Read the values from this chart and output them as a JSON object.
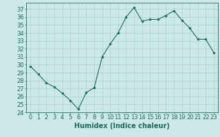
{
  "x": [
    0,
    1,
    2,
    3,
    4,
    5,
    6,
    7,
    8,
    9,
    10,
    11,
    12,
    13,
    14,
    15,
    16,
    17,
    18,
    19,
    20,
    21,
    22,
    23
  ],
  "y": [
    29.8,
    28.8,
    27.7,
    27.2,
    26.4,
    25.5,
    24.4,
    26.5,
    27.1,
    31.0,
    32.6,
    34.0,
    36.0,
    37.2,
    35.5,
    35.7,
    35.7,
    36.2,
    36.8,
    35.6,
    34.6,
    33.2,
    33.2,
    31.5
  ],
  "line_color": "#1a6b5a",
  "marker_color": "#1a6b5a",
  "bg_color": "#cce8e8",
  "grid_color": "#add0d0",
  "xlabel": "Humidex (Indice chaleur)",
  "xlim": [
    -0.5,
    23.5
  ],
  "ylim": [
    24,
    37.8
  ],
  "yticks": [
    24,
    25,
    26,
    27,
    28,
    29,
    30,
    31,
    32,
    33,
    34,
    35,
    36,
    37
  ],
  "xticks": [
    0,
    1,
    2,
    3,
    4,
    5,
    6,
    7,
    8,
    9,
    10,
    11,
    12,
    13,
    14,
    15,
    16,
    17,
    18,
    19,
    20,
    21,
    22,
    23
  ],
  "label_fontsize": 7,
  "tick_fontsize": 6
}
